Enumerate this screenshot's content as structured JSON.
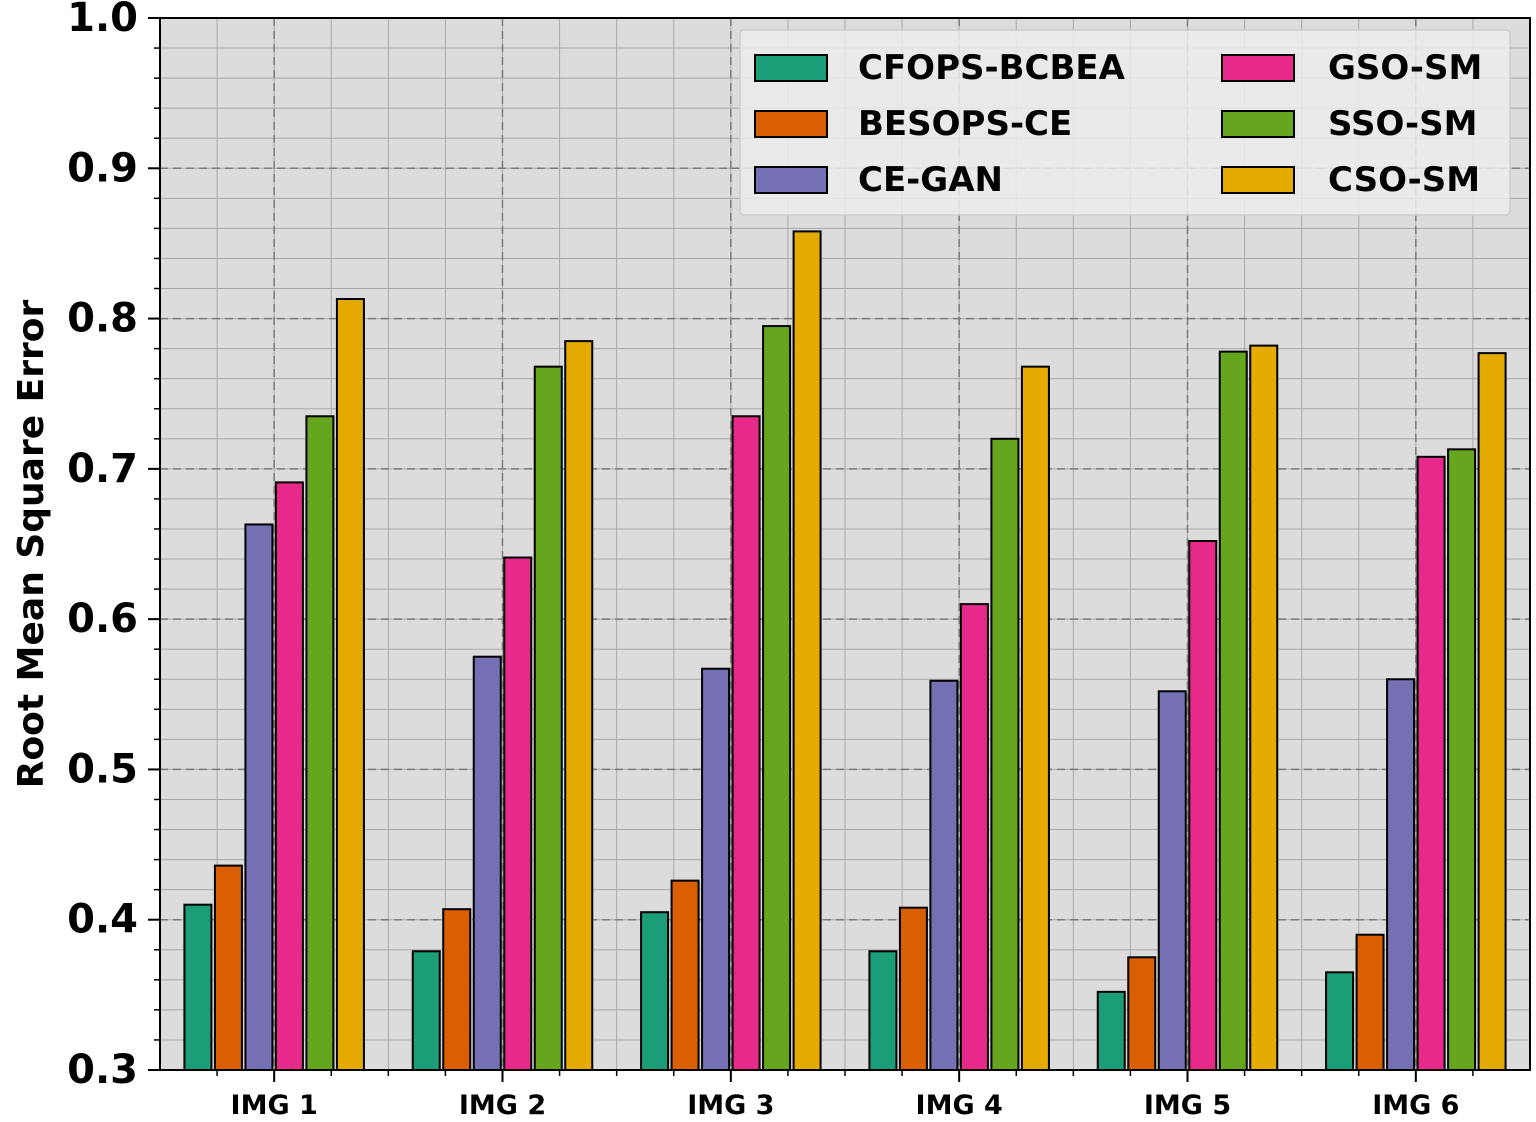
{
  "chart_data": {
    "type": "bar",
    "title": "",
    "xlabel": "",
    "ylabel": "Root Mean Square Error",
    "ylim": [
      0.3,
      1.0
    ],
    "yticks": [
      "0.3",
      "0.4",
      "0.5",
      "0.6",
      "0.7",
      "0.8",
      "0.9",
      "1.0"
    ],
    "grid": true,
    "legend_position": "top-right",
    "categories": [
      "IMG 1",
      "IMG 2",
      "IMG 3",
      "IMG 4",
      "IMG 5",
      "IMG 6"
    ],
    "series": [
      {
        "name": "CFOPS-BCBEA",
        "color": "#1b9e77",
        "values": [
          0.41,
          0.379,
          0.405,
          0.379,
          0.352,
          0.365
        ]
      },
      {
        "name": "BESOPS-CE",
        "color": "#d95f02",
        "values": [
          0.436,
          0.407,
          0.426,
          0.408,
          0.375,
          0.39
        ]
      },
      {
        "name": "CE-GAN",
        "color": "#7570b3",
        "values": [
          0.663,
          0.575,
          0.567,
          0.559,
          0.552,
          0.56
        ]
      },
      {
        "name": "GSO-SM",
        "color": "#e7298a",
        "values": [
          0.691,
          0.641,
          0.735,
          0.61,
          0.652,
          0.708
        ]
      },
      {
        "name": "SSO-SM",
        "color": "#66a61e",
        "values": [
          0.735,
          0.768,
          0.795,
          0.72,
          0.778,
          0.713
        ]
      },
      {
        "name": "CSO-SM",
        "color": "#e6ab02",
        "values": [
          0.813,
          0.785,
          0.858,
          0.768,
          0.782,
          0.777
        ]
      }
    ]
  }
}
